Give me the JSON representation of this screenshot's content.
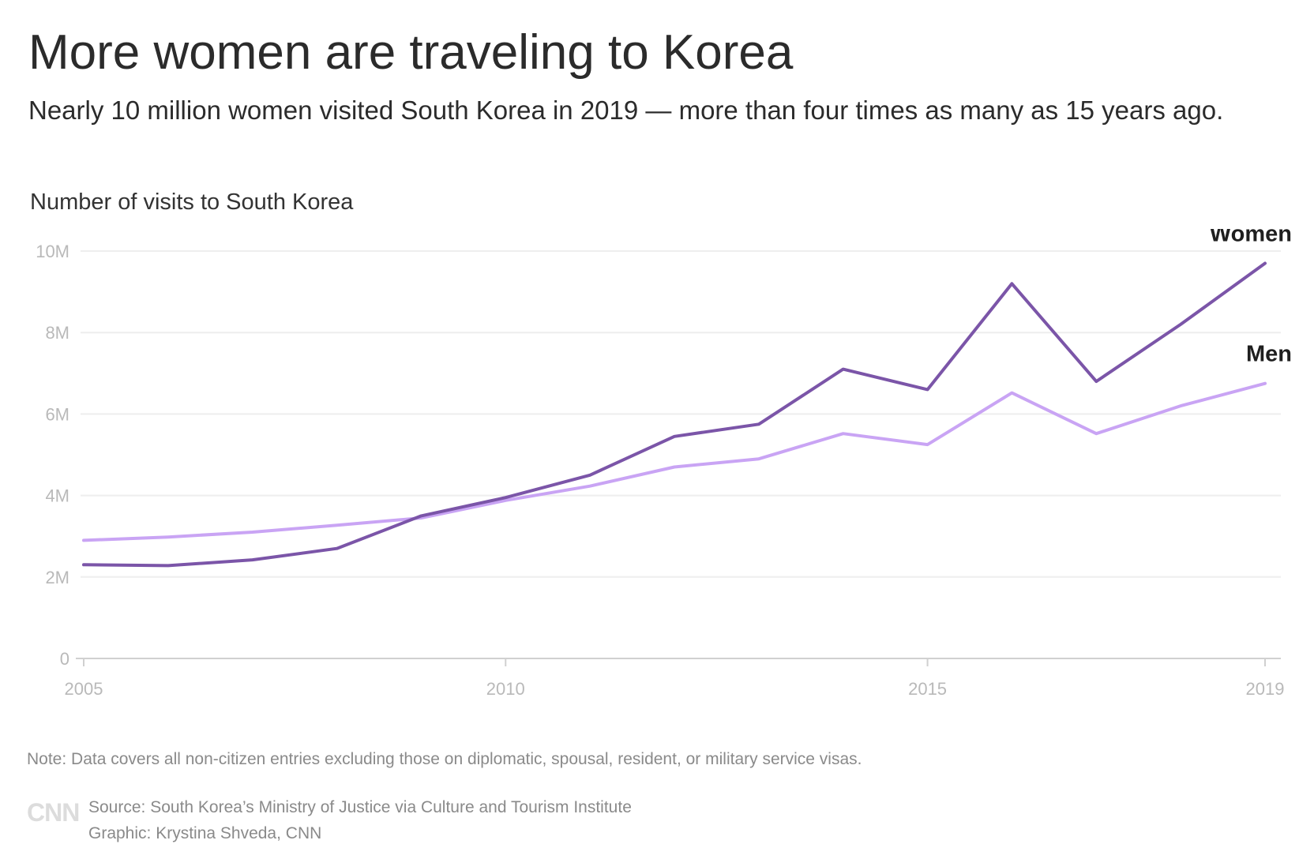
{
  "title": "More women are traveling to Korea",
  "subtitle": "Nearly 10 million women visited South Korea in 2019 — more than four times as many as 15 years ago.",
  "unit_label": "Number of visits to South Korea",
  "note": "Note: Data covers all non-citizen entries excluding those on diplomatic, spousal, resident, or military service visas.",
  "logo": "CNN",
  "source": "Source: South Korea’s Ministry of Justice via Culture and Tourism Institute",
  "graphic": "Graphic: Krystina Shveda, CNN",
  "colors": {
    "women": "#7b55a8",
    "men": "#c9a4f4",
    "grid": "#eeeeee",
    "axis": "#d0d0d0",
    "tick_text": "#b9b9b9"
  },
  "chart_data": {
    "type": "line",
    "x": [
      2005,
      2006,
      2007,
      2008,
      2009,
      2010,
      2011,
      2012,
      2013,
      2014,
      2015,
      2016,
      2017,
      2018,
      2019
    ],
    "series": [
      {
        "name": "Women",
        "values": [
          2.3,
          2.28,
          2.42,
          2.7,
          3.5,
          3.95,
          4.5,
          5.45,
          5.75,
          7.1,
          6.6,
          9.2,
          6.8,
          8.2,
          9.7
        ]
      },
      {
        "name": "Men",
        "values": [
          2.9,
          2.98,
          3.1,
          3.27,
          3.45,
          3.88,
          4.23,
          4.7,
          4.9,
          5.52,
          5.25,
          6.52,
          5.52,
          6.2,
          6.75
        ]
      }
    ],
    "ylim": [
      0,
      10
    ],
    "yticks": [
      0,
      2,
      4,
      6,
      8,
      10
    ],
    "ytick_labels": [
      "0",
      "2M",
      "4M",
      "6M",
      "8M",
      "10M"
    ],
    "xticks": [
      2005,
      2010,
      2015,
      2019
    ],
    "xtick_labels": [
      "2005",
      "2010",
      "2015",
      "2019"
    ],
    "xlim": [
      2005,
      2019
    ],
    "grid": true,
    "legend": "direct-labels-right"
  }
}
